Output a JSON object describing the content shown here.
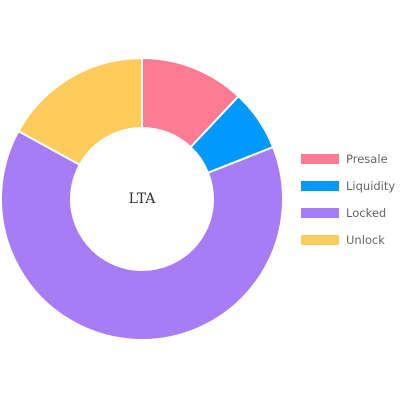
{
  "chart_data": {
    "type": "pie",
    "variant": "doughnut",
    "center_label": "LTA",
    "title": "",
    "labels": [
      "Presale",
      "Liquidity",
      "Locked",
      "Unlock"
    ],
    "values": [
      12,
      7,
      64,
      17
    ],
    "colors": [
      "#ff7a93",
      "#0099ff",
      "#a77cf4",
      "#ffcc5c"
    ],
    "legend_position": "right",
    "slice_border_color": "#ffffff"
  }
}
